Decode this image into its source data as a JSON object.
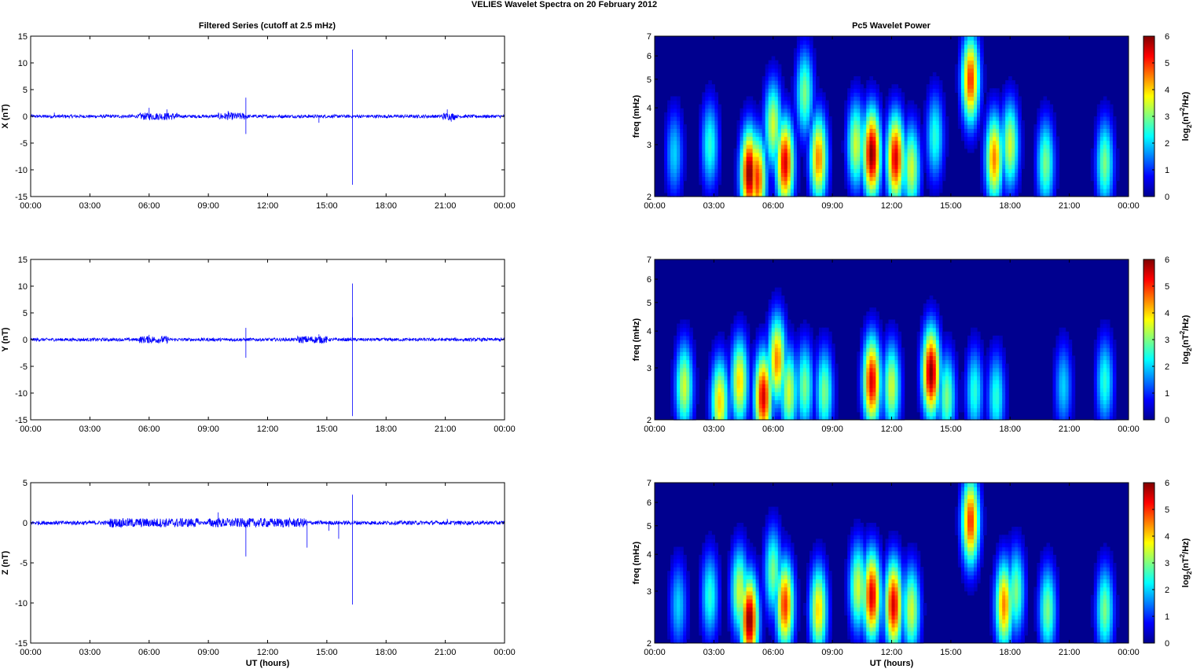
{
  "figure": {
    "title": "VELIES Wavelet Spectra on 20 February  2012",
    "left_title": "Filtered Series (cutoff at 2.5 mHz)",
    "right_title": "Pc5 Wavelet Power",
    "xlabel": "UT (hours)",
    "freq_label": "freq (mHz)"
  },
  "chart_data": [
    {
      "type": "line",
      "title": "Filtered Series (cutoff at 2.5 mHz)",
      "ylabel": "X (nT)",
      "xlabel": "",
      "x_ticks": [
        "00:00",
        "03:00",
        "06:00",
        "09:00",
        "12:00",
        "15:00",
        "18:00",
        "21:00",
        "00:00"
      ],
      "xlim": [
        0,
        24
      ],
      "ylim": [
        -15,
        15
      ],
      "y_ticks": [
        -15,
        -10,
        -5,
        0,
        5,
        10,
        15
      ],
      "color": "#0000ff",
      "baseline_noise_nT": 0.3,
      "active_periods_hours": [
        [
          5.5,
          7.5
        ],
        [
          9.5,
          11.0
        ],
        [
          20.8,
          21.5
        ]
      ],
      "spikes": [
        {
          "x": 1.2,
          "y": 0.7
        },
        {
          "x": 6.0,
          "y": 1.6
        },
        {
          "x": 6.9,
          "y": 1.3
        },
        {
          "x": 10.0,
          "y": 1.0
        },
        {
          "x": 10.9,
          "y": 3.5
        },
        {
          "x": 10.9,
          "y": -3.3
        },
        {
          "x": 14.6,
          "y": -1.2
        },
        {
          "x": 16.3,
          "y": 12.5
        },
        {
          "x": 16.3,
          "y": -12.8
        },
        {
          "x": 21.1,
          "y": 1.3
        },
        {
          "x": 21.3,
          "y": -1.0
        }
      ]
    },
    {
      "type": "heatmap",
      "title": "Pc5 Wavelet Power",
      "ylabel": "freq (mHz)",
      "xlabel": "",
      "x_ticks": [
        "00:00",
        "03:00",
        "06:00",
        "09:00",
        "12:00",
        "15:00",
        "18:00",
        "21:00",
        "00:00"
      ],
      "xlim": [
        0,
        24
      ],
      "ylim": [
        2,
        7
      ],
      "y_scale": "log",
      "y_ticks": [
        2,
        3,
        4,
        5,
        6,
        7
      ],
      "colorbar": {
        "label_base": "log",
        "label_sub": "2",
        "label_mid": "(nT",
        "label_sup": "2",
        "label_end": "/Hz)",
        "ticks": [
          0,
          1,
          2,
          3,
          4,
          5,
          6
        ],
        "colormap": "jet"
      },
      "hotspots": [
        {
          "t": 4.8,
          "f": 2.4,
          "p": 6.0
        },
        {
          "t": 5.2,
          "f": 2.3,
          "p": 5.0
        },
        {
          "t": 6.6,
          "f": 2.6,
          "p": 5.5
        },
        {
          "t": 6.0,
          "f": 3.5,
          "p": 3.5
        },
        {
          "t": 8.3,
          "f": 2.7,
          "p": 4.5
        },
        {
          "t": 10.2,
          "f": 3.0,
          "p": 3.5
        },
        {
          "t": 11.0,
          "f": 2.8,
          "p": 6.0
        },
        {
          "t": 12.2,
          "f": 2.7,
          "p": 5.5
        },
        {
          "t": 13.0,
          "f": 2.5,
          "p": 3.5
        },
        {
          "t": 16.0,
          "f": 5.0,
          "p": 5.0
        },
        {
          "t": 17.2,
          "f": 2.7,
          "p": 4.5
        },
        {
          "t": 18.0,
          "f": 3.0,
          "p": 3.5
        },
        {
          "t": 19.8,
          "f": 2.6,
          "p": 3.0
        },
        {
          "t": 22.8,
          "f": 2.6,
          "p": 3.0
        },
        {
          "t": 2.8,
          "f": 3.0,
          "p": 2.5
        },
        {
          "t": 1.0,
          "f": 2.8,
          "p": 2.0
        },
        {
          "t": 7.6,
          "f": 4.5,
          "p": 3.0
        },
        {
          "t": 14.2,
          "f": 3.2,
          "p": 2.5
        }
      ]
    },
    {
      "type": "line",
      "title": "",
      "ylabel": "Y (nT)",
      "xlabel": "",
      "x_ticks": [
        "00:00",
        "03:00",
        "06:00",
        "09:00",
        "12:00",
        "15:00",
        "18:00",
        "21:00",
        "00:00"
      ],
      "xlim": [
        0,
        24
      ],
      "ylim": [
        -15,
        15
      ],
      "y_ticks": [
        -15,
        -10,
        -5,
        0,
        5,
        10,
        15
      ],
      "color": "#0000ff",
      "baseline_noise_nT": 0.3,
      "active_periods_hours": [
        [
          5.5,
          7.0
        ],
        [
          13.5,
          15.0
        ]
      ],
      "spikes": [
        {
          "x": 6.0,
          "y": 0.9
        },
        {
          "x": 10.9,
          "y": 2.2
        },
        {
          "x": 10.9,
          "y": -3.4
        },
        {
          "x": 14.6,
          "y": 1.0
        },
        {
          "x": 16.3,
          "y": 10.5
        },
        {
          "x": 16.3,
          "y": 4.2
        },
        {
          "x": 16.3,
          "y": -14.3
        }
      ]
    },
    {
      "type": "heatmap",
      "title": "",
      "ylabel": "freq (mHz)",
      "xlabel": "",
      "x_ticks": [
        "00:00",
        "03:00",
        "06:00",
        "09:00",
        "12:00",
        "15:00",
        "18:00",
        "21:00",
        "00:00"
      ],
      "xlim": [
        0,
        24
      ],
      "ylim": [
        2,
        7
      ],
      "y_scale": "log",
      "y_ticks": [
        2,
        3,
        4,
        5,
        6,
        7
      ],
      "colorbar": {
        "label_base": "log",
        "label_sub": "2",
        "label_mid": "(nT",
        "label_sup": "2",
        "label_end": "/Hz)",
        "ticks": [
          0,
          1,
          2,
          3,
          4,
          5,
          6
        ],
        "colormap": "jet"
      },
      "hotspots": [
        {
          "t": 1.5,
          "f": 2.6,
          "p": 3.5
        },
        {
          "t": 3.3,
          "f": 2.3,
          "p": 4.0
        },
        {
          "t": 4.3,
          "f": 2.7,
          "p": 4.0
        },
        {
          "t": 5.5,
          "f": 2.4,
          "p": 5.5
        },
        {
          "t": 6.2,
          "f": 3.2,
          "p": 4.5
        },
        {
          "t": 6.8,
          "f": 2.5,
          "p": 3.5
        },
        {
          "t": 7.6,
          "f": 2.6,
          "p": 3.0
        },
        {
          "t": 8.6,
          "f": 2.5,
          "p": 3.0
        },
        {
          "t": 11.0,
          "f": 2.7,
          "p": 5.5
        },
        {
          "t": 12.0,
          "f": 2.6,
          "p": 3.5
        },
        {
          "t": 14.0,
          "f": 2.9,
          "p": 6.0
        },
        {
          "t": 14.8,
          "f": 2.4,
          "p": 3.0
        },
        {
          "t": 16.2,
          "f": 2.5,
          "p": 2.5
        },
        {
          "t": 17.3,
          "f": 2.4,
          "p": 2.5
        },
        {
          "t": 20.7,
          "f": 2.6,
          "p": 2.0
        },
        {
          "t": 22.8,
          "f": 2.7,
          "p": 2.5
        }
      ]
    },
    {
      "type": "line",
      "title": "",
      "ylabel": "Z (nT)",
      "xlabel": "UT (hours)",
      "x_ticks": [
        "00:00",
        "03:00",
        "06:00",
        "09:00",
        "12:00",
        "15:00",
        "18:00",
        "21:00",
        "00:00"
      ],
      "xlim": [
        0,
        24
      ],
      "ylim": [
        -15,
        5
      ],
      "y_ticks": [
        -15,
        -10,
        -5,
        0,
        5
      ],
      "color": "#0000ff",
      "baseline_noise_nT": 0.25,
      "active_periods_hours": [
        [
          4.0,
          8.5
        ],
        [
          9.0,
          14.0
        ]
      ],
      "spikes": [
        {
          "x": 9.5,
          "y": 1.3
        },
        {
          "x": 10.9,
          "y": -4.2
        },
        {
          "x": 14.0,
          "y": -3.1
        },
        {
          "x": 15.1,
          "y": -1.0
        },
        {
          "x": 15.6,
          "y": -2.0
        },
        {
          "x": 16.3,
          "y": 3.5
        },
        {
          "x": 16.3,
          "y": -10.2
        },
        {
          "x": 21.1,
          "y": 0.5
        }
      ]
    },
    {
      "type": "heatmap",
      "title": "",
      "ylabel": "freq (mHz)",
      "xlabel": "UT (hours)",
      "x_ticks": [
        "00:00",
        "03:00",
        "06:00",
        "09:00",
        "12:00",
        "15:00",
        "18:00",
        "21:00",
        "00:00"
      ],
      "xlim": [
        0,
        24
      ],
      "ylim": [
        2,
        7
      ],
      "y_scale": "log",
      "y_ticks": [
        2,
        3,
        4,
        5,
        6,
        7
      ],
      "colorbar": {
        "label_base": "log",
        "label_sub": "2",
        "label_mid": "(nT",
        "label_sup": "2",
        "label_end": "/Hz)",
        "ticks": [
          0,
          1,
          2,
          3,
          4,
          5,
          6
        ],
        "colormap": "jet"
      },
      "hotspots": [
        {
          "t": 4.8,
          "f": 2.4,
          "p": 6.0
        },
        {
          "t": 4.3,
          "f": 3.0,
          "p": 3.5
        },
        {
          "t": 6.6,
          "f": 2.7,
          "p": 5.0
        },
        {
          "t": 6.0,
          "f": 3.5,
          "p": 3.0
        },
        {
          "t": 8.3,
          "f": 2.6,
          "p": 4.0
        },
        {
          "t": 10.3,
          "f": 3.1,
          "p": 3.5
        },
        {
          "t": 11.0,
          "f": 2.9,
          "p": 5.5
        },
        {
          "t": 12.1,
          "f": 2.7,
          "p": 5.5
        },
        {
          "t": 13.0,
          "f": 2.6,
          "p": 3.5
        },
        {
          "t": 16.0,
          "f": 5.2,
          "p": 5.0
        },
        {
          "t": 17.7,
          "f": 2.7,
          "p": 4.5
        },
        {
          "t": 18.3,
          "f": 3.0,
          "p": 3.0
        },
        {
          "t": 19.9,
          "f": 2.6,
          "p": 3.0
        },
        {
          "t": 22.8,
          "f": 2.6,
          "p": 3.0
        },
        {
          "t": 2.8,
          "f": 2.9,
          "p": 2.5
        },
        {
          "t": 1.2,
          "f": 2.7,
          "p": 2.0
        }
      ]
    }
  ]
}
